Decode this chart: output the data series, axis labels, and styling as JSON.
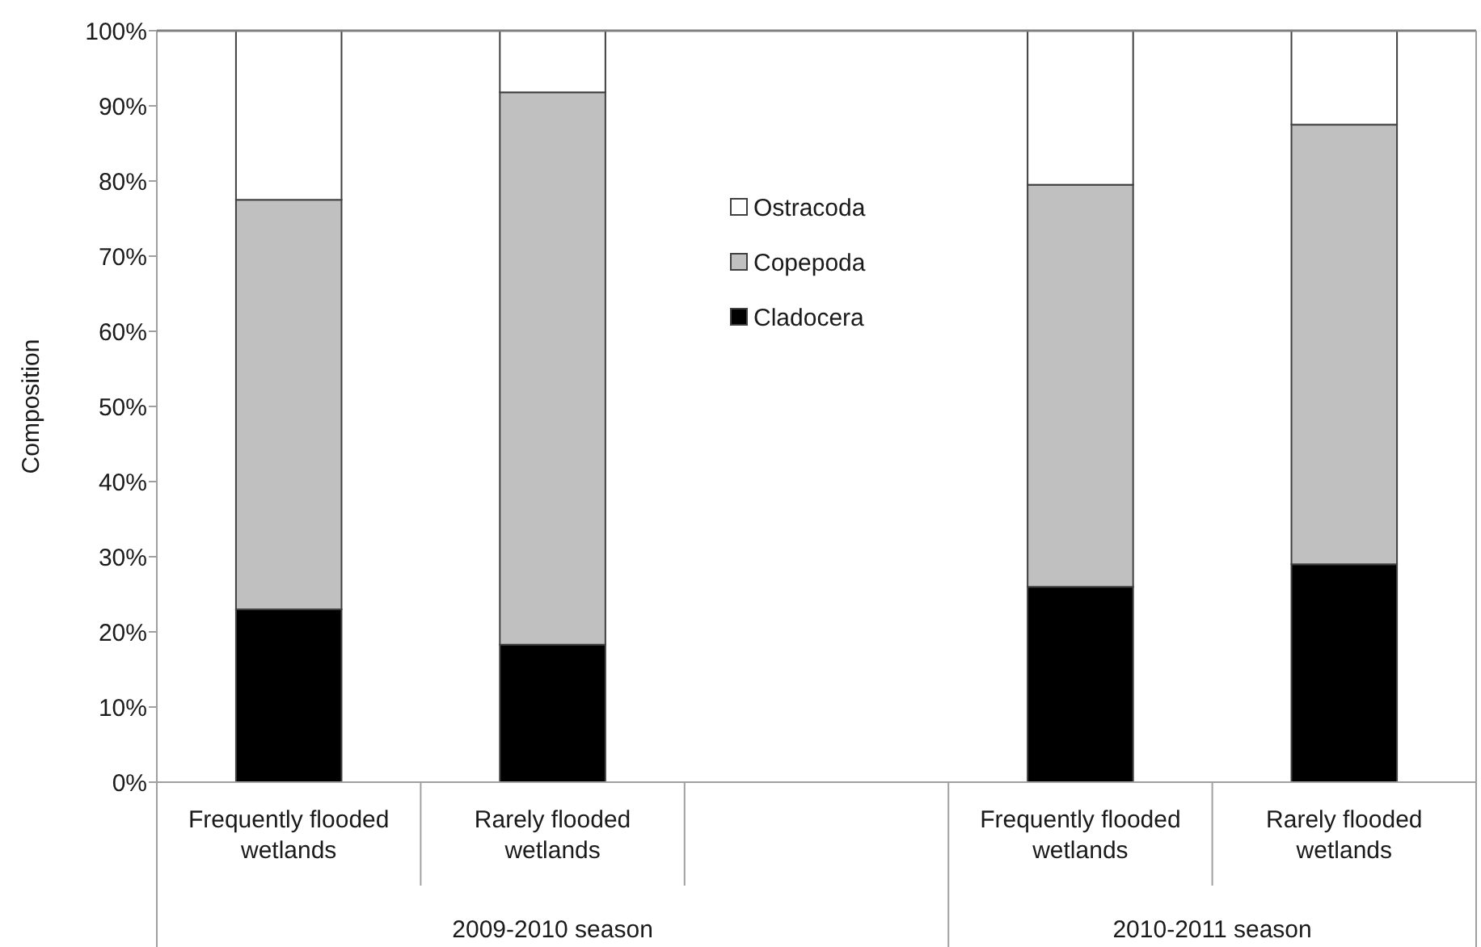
{
  "chart_data": {
    "type": "bar",
    "stacked": true,
    "ylabel": "Composition",
    "categories": [
      "Frequently flooded wetlands",
      "Rarely flooded wetlands",
      null,
      "Frequently flooded wetlands",
      "Rarely flooded wetlands"
    ],
    "series": [
      {
        "name": "Cladocera",
        "color": "#000000",
        "values": [
          23,
          18.3,
          null,
          26,
          29
        ]
      },
      {
        "name": "Copepoda",
        "color": "#c0c0c0",
        "values": [
          54.5,
          73.5,
          null,
          53.5,
          58.5
        ]
      },
      {
        "name": "Ostracoda",
        "color": "#ffffff",
        "values": [
          22.5,
          8.2,
          null,
          20.5,
          12.5
        ]
      }
    ],
    "ylim": [
      0,
      100
    ],
    "yticks": [
      {
        "value": 0,
        "label": "0%"
      },
      {
        "value": 10,
        "label": "10%"
      },
      {
        "value": 20,
        "label": "20%"
      },
      {
        "value": 30,
        "label": "30%"
      },
      {
        "value": 40,
        "label": "40%"
      },
      {
        "value": 50,
        "label": "50%"
      },
      {
        "value": 60,
        "label": "60%"
      },
      {
        "value": 70,
        "label": "70%"
      },
      {
        "value": 80,
        "label": "80%"
      },
      {
        "value": 90,
        "label": "90%"
      },
      {
        "value": 100,
        "label": "100%"
      }
    ],
    "annotations": [
      "2009-2010 season",
      "2010-2011 season"
    ],
    "legend": "top",
    "grid": false
  }
}
